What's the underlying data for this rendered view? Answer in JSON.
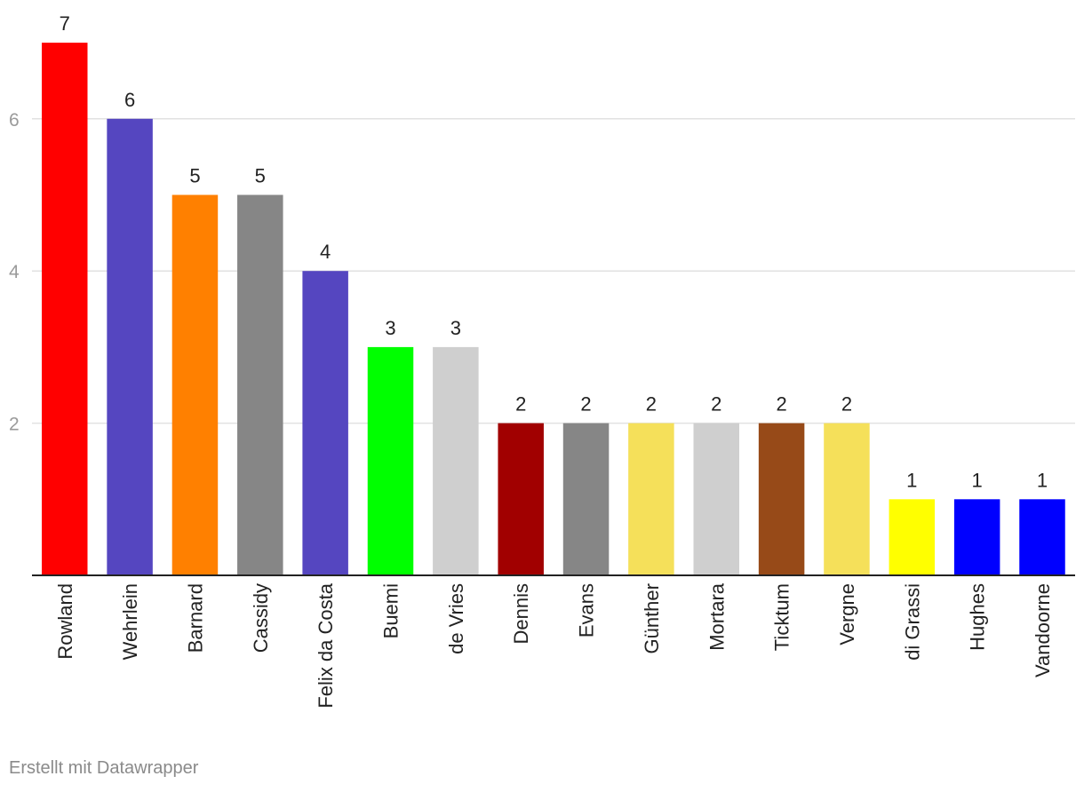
{
  "chart_data": {
    "type": "bar",
    "categories": [
      "Rowland",
      "Wehrlein",
      "Barnard",
      "Cassidy",
      "Felix da Costa",
      "Buemi",
      "de Vries",
      "Dennis",
      "Evans",
      "Günther",
      "Mortara",
      "Ticktum",
      "Vergne",
      "di Grassi",
      "Hughes",
      "Vandoorne"
    ],
    "values": [
      7,
      6,
      5,
      5,
      4,
      3,
      3,
      2,
      2,
      2,
      2,
      2,
      2,
      1,
      1,
      1
    ],
    "colors": [
      "#ff0000",
      "#5546c0",
      "#ff8000",
      "#868686",
      "#5546c0",
      "#00ff00",
      "#cfcfcf",
      "#a10000",
      "#868686",
      "#f5e05a",
      "#cfcfcf",
      "#974a18",
      "#f5e05a",
      "#ffff00",
      "#0000ff",
      "#0000ff"
    ],
    "ylim": [
      0,
      7
    ],
    "yticks": [
      "2",
      "4",
      "6"
    ],
    "grid": true,
    "data_labels": true
  },
  "footer": {
    "credit": "Erstellt mit Datawrapper"
  }
}
